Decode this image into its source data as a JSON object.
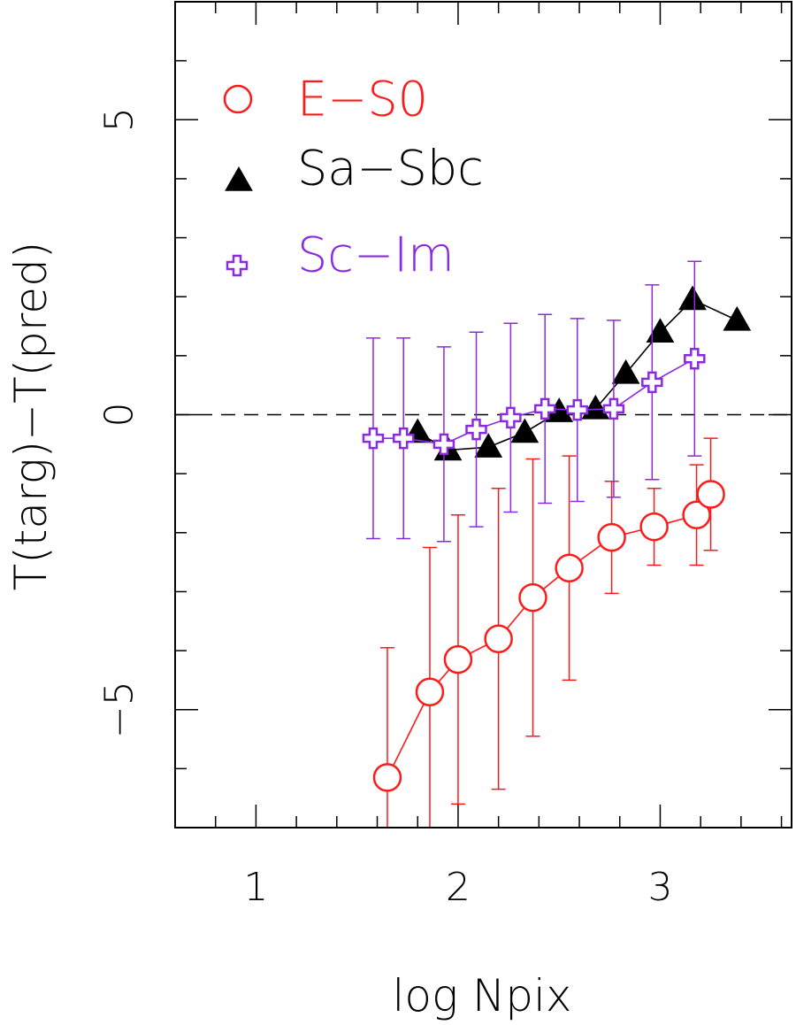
{
  "colors": {
    "E-S0": "#ff1a1a",
    "Sa-Sbc": "#000000",
    "Sc-Im": "#8a2be2"
  },
  "chart_data": {
    "type": "scatter",
    "title": "",
    "xlabel": "log Npix",
    "ylabel": "T(targ)−T(pred)",
    "xlim": [
      0.6,
      3.65
    ],
    "ylim": [
      -7,
      7
    ],
    "xticks": [
      {
        "v": 1,
        "label": "1"
      },
      {
        "v": 2,
        "label": "2"
      },
      {
        "v": 3,
        "label": "3"
      }
    ],
    "yticks": [
      {
        "v": -5,
        "label": "−5"
      },
      {
        "v": 0,
        "label": "0"
      },
      {
        "v": 5,
        "label": "5"
      }
    ],
    "reference_line": 0,
    "legend": "top-left",
    "series": [
      {
        "name": "E−S0",
        "marker": "open-circle",
        "x": [
          1.65,
          1.86,
          2.0,
          2.2,
          2.37,
          2.55,
          2.76,
          2.97,
          3.18,
          3.25
        ],
        "y": [
          -6.15,
          -4.7,
          -4.15,
          -3.8,
          -3.1,
          -2.6,
          -2.08,
          -1.9,
          -1.7,
          -1.35
        ],
        "err": [
          2.2,
          2.45,
          2.45,
          2.55,
          2.35,
          1.9,
          0.95,
          0.65,
          0.85,
          0.95
        ]
      },
      {
        "name": "Sa−Sbc",
        "marker": "filled-triangle",
        "x": [
          1.8,
          1.95,
          2.15,
          2.33,
          2.5,
          2.68,
          2.83,
          3.0,
          3.16,
          3.38
        ],
        "y": [
          -0.3,
          -0.6,
          -0.55,
          -0.3,
          0.05,
          0.1,
          0.7,
          1.4,
          1.95,
          1.6
        ],
        "err": [
          null,
          null,
          null,
          null,
          null,
          null,
          null,
          null,
          null,
          null
        ]
      },
      {
        "name": "Sc−Im",
        "marker": "open-cross",
        "x": [
          1.58,
          1.73,
          1.93,
          2.09,
          2.26,
          2.43,
          2.59,
          2.77,
          2.96,
          3.17
        ],
        "y": [
          -0.4,
          -0.4,
          -0.5,
          -0.25,
          -0.05,
          0.1,
          0.08,
          0.1,
          0.55,
          0.95
        ],
        "err": [
          1.7,
          1.7,
          1.65,
          1.65,
          1.6,
          1.6,
          1.55,
          1.5,
          1.65,
          1.65
        ]
      }
    ]
  }
}
